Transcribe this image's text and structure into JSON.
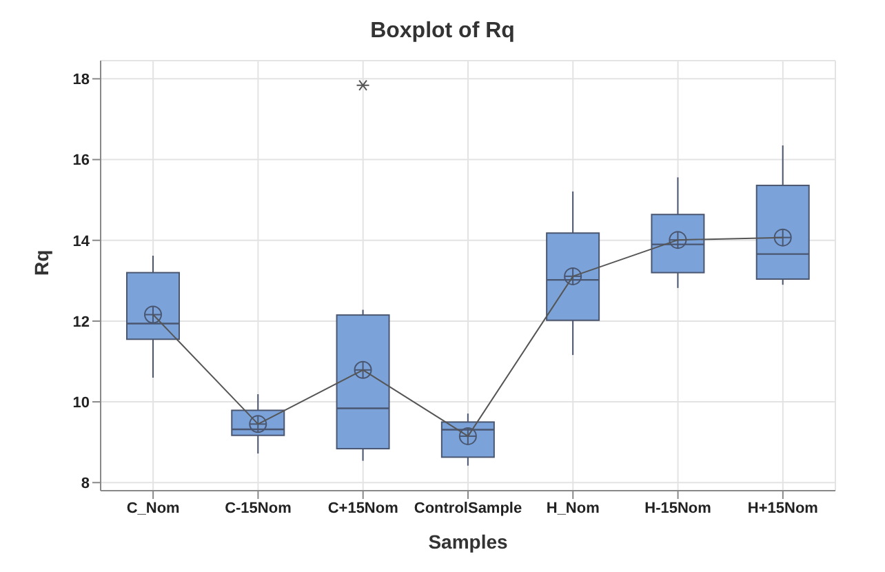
{
  "chart_data": {
    "type": "box",
    "title": "Boxplot of Rq",
    "xlabel": "Samples",
    "ylabel": "Rq",
    "categories": [
      "C_Nom",
      "C-15Nom",
      "C+15Nom",
      "ControlSample",
      "H_Nom",
      "H-15Nom",
      "H+15Nom"
    ],
    "ylim": [
      7.8,
      18.45
    ],
    "yticks": [
      8,
      10,
      12,
      14,
      16,
      18
    ],
    "grid": true,
    "color": "#7ba3d9",
    "boxes": [
      {
        "low": 10.6,
        "q1": 11.55,
        "median": 11.94,
        "q3": 13.2,
        "high": 13.62,
        "mean": 12.16
      },
      {
        "low": 8.72,
        "q1": 9.17,
        "median": 9.32,
        "q3": 9.79,
        "high": 10.19,
        "mean": 9.45
      },
      {
        "low": 8.54,
        "q1": 8.84,
        "median": 9.84,
        "q3": 12.15,
        "high": 12.28,
        "mean": 10.79,
        "outliers": [
          17.84
        ]
      },
      {
        "low": 8.42,
        "q1": 8.63,
        "median": 9.31,
        "q3": 9.5,
        "high": 9.71,
        "mean": 9.15
      },
      {
        "low": 11.16,
        "q1": 12.02,
        "median": 13.02,
        "q3": 14.18,
        "high": 15.21,
        "mean": 13.11
      },
      {
        "low": 12.82,
        "q1": 13.2,
        "median": 13.9,
        "q3": 14.64,
        "high": 15.56,
        "mean": 14.01
      },
      {
        "low": 12.9,
        "q1": 13.04,
        "median": 13.66,
        "q3": 15.36,
        "high": 16.35,
        "mean": 14.07
      }
    ],
    "series": [
      {
        "type": "line",
        "color": "#555555",
        "values": [
          12.16,
          9.45,
          10.79,
          9.15,
          13.11,
          14.01,
          14.07
        ]
      }
    ]
  }
}
